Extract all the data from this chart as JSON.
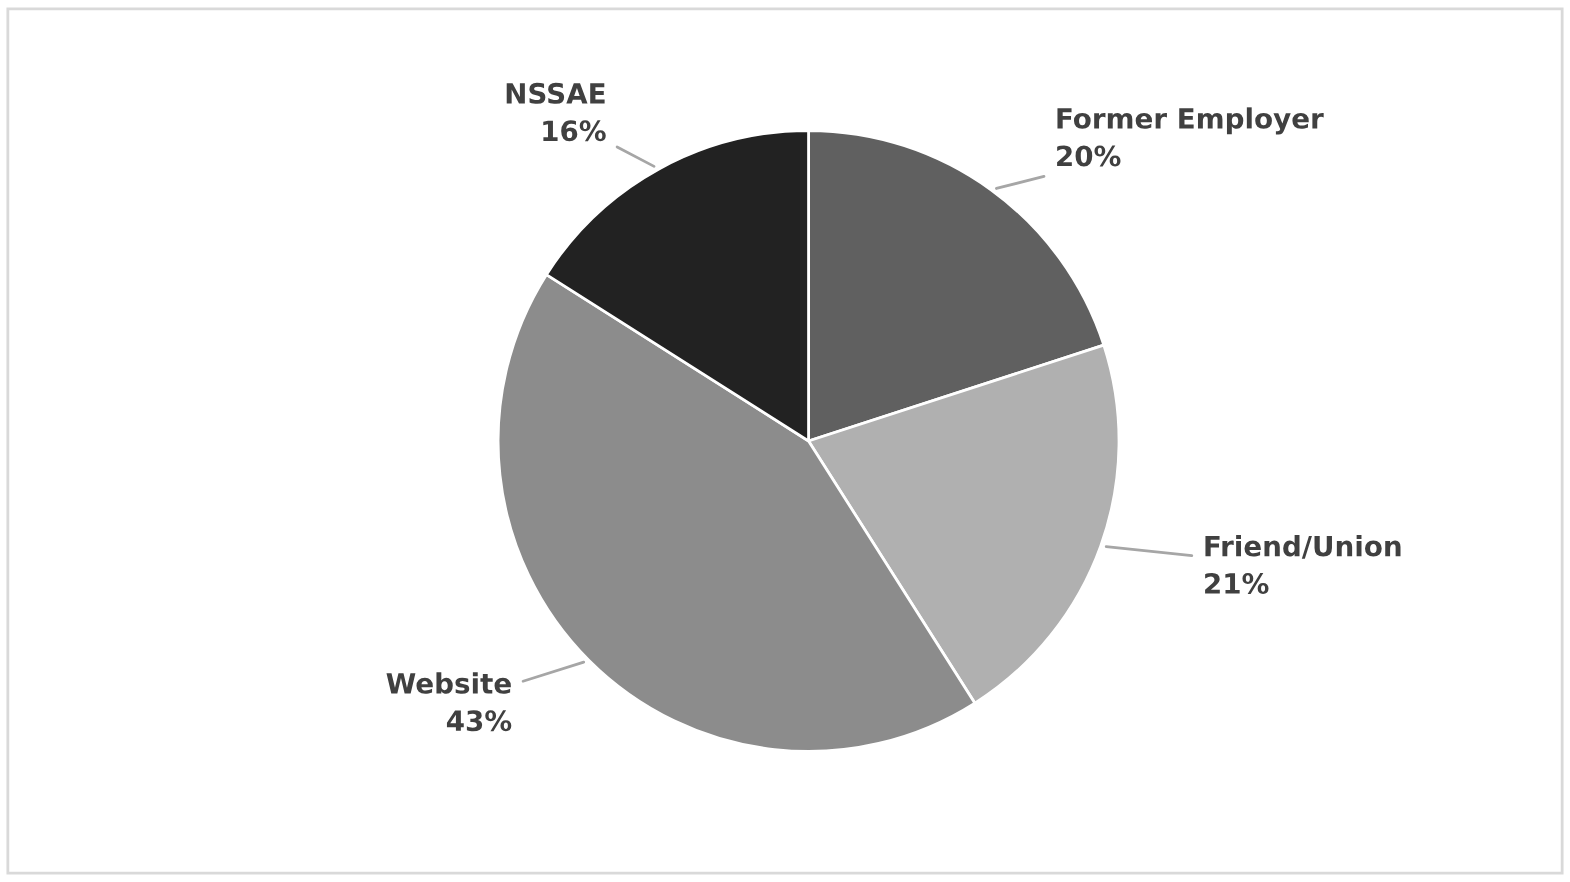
{
  "chart_data": {
    "type": "pie",
    "categories": [
      "Former Employer",
      "Friend/Union",
      "Website",
      "NSSAE"
    ],
    "values": [
      20,
      21,
      43,
      16
    ],
    "colors": [
      "#606060",
      "#b0b0b0",
      "#8c8c8c",
      "#222222"
    ],
    "value_labels": [
      "20%",
      "21%",
      "43%",
      "16%"
    ]
  }
}
